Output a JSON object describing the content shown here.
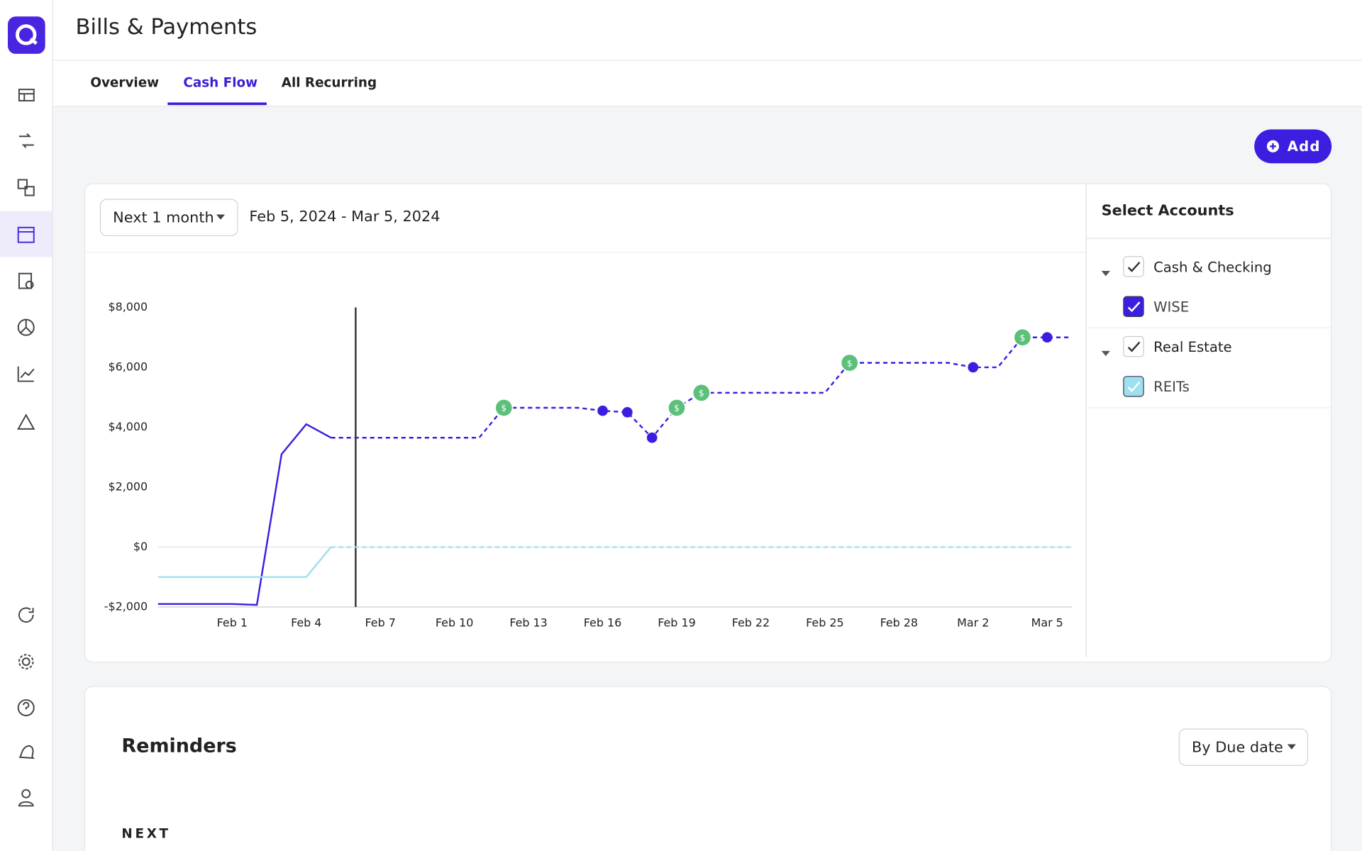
{
  "header": {
    "title": "Bills & Payments"
  },
  "tabs": [
    "Overview",
    "Cash Flow",
    "All Recurring"
  ],
  "add_button": "Add",
  "range": {
    "selector": "Next 1 month",
    "dates": "Feb 5, 2024 - Mar 5, 2024"
  },
  "accounts": {
    "title": "Select Accounts",
    "groups": [
      {
        "name": "Cash & Checking",
        "accounts": [
          {
            "name": "WISE",
            "color": "#3b1fe0"
          }
        ]
      },
      {
        "name": "Real Estate",
        "accounts": [
          {
            "name": "REITs",
            "color": "#9fe0ee"
          }
        ]
      }
    ]
  },
  "reminders": {
    "title": "Reminders",
    "sort": "By Due date",
    "section": "NEXT"
  },
  "chart_data": {
    "type": "line",
    "xlim": [
      "2024-01-29",
      "2024-03-06"
    ],
    "xticks": [
      {
        "value": "2024-02-01",
        "label": "Feb 1"
      },
      {
        "value": "2024-02-04",
        "label": "Feb 4"
      },
      {
        "value": "2024-02-07",
        "label": "Feb 7"
      },
      {
        "value": "2024-02-10",
        "label": "Feb 10"
      },
      {
        "value": "2024-02-13",
        "label": "Feb 13"
      },
      {
        "value": "2024-02-16",
        "label": "Feb 16"
      },
      {
        "value": "2024-02-19",
        "label": "Feb 19"
      },
      {
        "value": "2024-02-22",
        "label": "Feb 22"
      },
      {
        "value": "2024-02-25",
        "label": "Feb 25"
      },
      {
        "value": "2024-02-28",
        "label": "Feb 28"
      },
      {
        "value": "2024-03-02",
        "label": "Mar 2"
      },
      {
        "value": "2024-03-05",
        "label": "Mar 5"
      }
    ],
    "ylim": [
      -2000,
      8000
    ],
    "yticks": [
      {
        "value": -2000,
        "label": "-$2,000"
      },
      {
        "value": 0,
        "label": "$0"
      },
      {
        "value": 2000,
        "label": "$2,000"
      },
      {
        "value": 4000,
        "label": "$4,000"
      },
      {
        "value": 6000,
        "label": "$6,000"
      },
      {
        "value": 8000,
        "label": "$8,000"
      }
    ],
    "today": "2024-02-06",
    "series": [
      {
        "color": "#3b1fe0",
        "dashed": false,
        "x": [
          "2024-01-29",
          "2024-01-30",
          "2024-01-31",
          "2024-02-01",
          "2024-02-02",
          "2024-02-03",
          "2024-02-04",
          "2024-02-05"
        ],
        "values": [
          -1900,
          -1900,
          -1900,
          -1900,
          -1930,
          3100,
          4100,
          3650
        ]
      },
      {
        "color": "#3b1fe0",
        "dashed": true,
        "x": [
          "2024-02-05",
          "2024-02-11",
          "2024-02-12",
          "2024-02-15",
          "2024-02-16",
          "2024-02-17",
          "2024-02-18",
          "2024-02-19",
          "2024-02-20",
          "2024-02-25",
          "2024-02-26",
          "2024-03-01",
          "2024-03-02",
          "2024-03-03",
          "2024-03-04",
          "2024-03-05",
          "2024-03-06"
        ],
        "values": [
          3650,
          3650,
          4650,
          4650,
          4550,
          4500,
          3650,
          4650,
          5150,
          5150,
          6150,
          6150,
          6000,
          6000,
          7000,
          7000,
          7000
        ]
      },
      {
        "color": "#9fe0ee",
        "dashed": false,
        "x": [
          "2024-01-29",
          "2024-02-04",
          "2024-02-05"
        ],
        "values": [
          -1000,
          -1000,
          0
        ]
      },
      {
        "color": "#9fe0ee",
        "dashed": true,
        "x": [
          "2024-02-05",
          "2024-03-06"
        ],
        "values": [
          0,
          0
        ]
      }
    ],
    "income": {
      "color": "#5cbf7a",
      "label": "$",
      "x": [
        "2024-02-12",
        "2024-02-19",
        "2024-02-20",
        "2024-02-26",
        "2024-03-04"
      ],
      "values": [
        4650,
        4650,
        5150,
        6150,
        7000
      ]
    },
    "expenses": {
      "color": "#3b1fe0",
      "x": [
        "2024-02-16",
        "2024-02-17",
        "2024-02-18",
        "2024-03-02",
        "2024-03-05"
      ],
      "values": [
        4550,
        4500,
        3650,
        6000,
        7000
      ]
    }
  }
}
